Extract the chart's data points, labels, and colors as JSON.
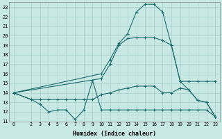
{
  "xlabel": "Humidex (Indice chaleur)",
  "bg_color": "#c8e8e4",
  "grid_color": "#a8d0cc",
  "line_color": "#1a6b6b",
  "xlim": [
    -0.5,
    23.5
  ],
  "ylim": [
    11,
    23.5
  ],
  "yticks": [
    11,
    12,
    13,
    14,
    15,
    16,
    17,
    18,
    19,
    20,
    21,
    22,
    23
  ],
  "xtick_positions": [
    0,
    2,
    3,
    4,
    5,
    6,
    7,
    8,
    9,
    10,
    11,
    12,
    13,
    14,
    15,
    16,
    17,
    18,
    19,
    20,
    21,
    22,
    23
  ],
  "xtick_labels": [
    "0",
    "2",
    "3",
    "4",
    "5",
    "6",
    "7",
    "8",
    "9",
    "10",
    "11",
    "12",
    "13",
    "14",
    "15",
    "16",
    "17",
    "18",
    "19",
    "20",
    "21",
    "22",
    "23"
  ],
  "curve1_x": [
    0,
    10,
    11,
    12,
    13,
    14,
    15,
    16,
    17,
    18,
    19,
    20,
    21,
    22,
    23
  ],
  "curve1_y": [
    14.0,
    16.0,
    17.5,
    19.2,
    20.2,
    22.5,
    23.3,
    23.3,
    22.5,
    19.0,
    15.2,
    15.2,
    15.2,
    15.2,
    15.2
  ],
  "curve2_x": [
    0,
    10,
    11,
    12,
    13,
    14,
    15,
    16,
    17,
    18,
    19,
    20,
    21,
    22,
    23
  ],
  "curve2_y": [
    14.0,
    15.5,
    17.0,
    19.0,
    19.7,
    19.8,
    19.8,
    19.8,
    19.5,
    19.0,
    15.2,
    14.3,
    13.2,
    13.0,
    11.5
  ],
  "curve3_x": [
    0,
    2,
    3,
    4,
    5,
    6,
    7,
    8,
    9,
    10,
    11,
    12,
    13,
    14,
    15,
    16,
    17,
    18,
    19,
    20,
    21,
    22,
    23
  ],
  "curve3_y": [
    14.0,
    13.3,
    13.3,
    13.3,
    13.3,
    13.3,
    13.3,
    13.3,
    13.3,
    13.8,
    14.0,
    14.3,
    14.5,
    14.7,
    14.7,
    14.7,
    14.0,
    14.0,
    14.5,
    14.3,
    13.2,
    13.0,
    11.5
  ],
  "curve4_x": [
    0,
    2,
    3,
    4,
    5,
    6,
    7,
    8,
    9,
    10,
    11,
    12,
    13,
    14,
    15,
    16,
    17,
    18,
    19,
    20,
    21,
    22,
    23
  ],
  "curve4_y": [
    14.0,
    13.3,
    12.8,
    12.0,
    12.2,
    12.2,
    11.2,
    12.2,
    15.3,
    12.2,
    12.2,
    12.2,
    12.2,
    12.2,
    12.2,
    12.2,
    12.2,
    12.2,
    12.2,
    12.2,
    12.2,
    12.2,
    11.5
  ]
}
